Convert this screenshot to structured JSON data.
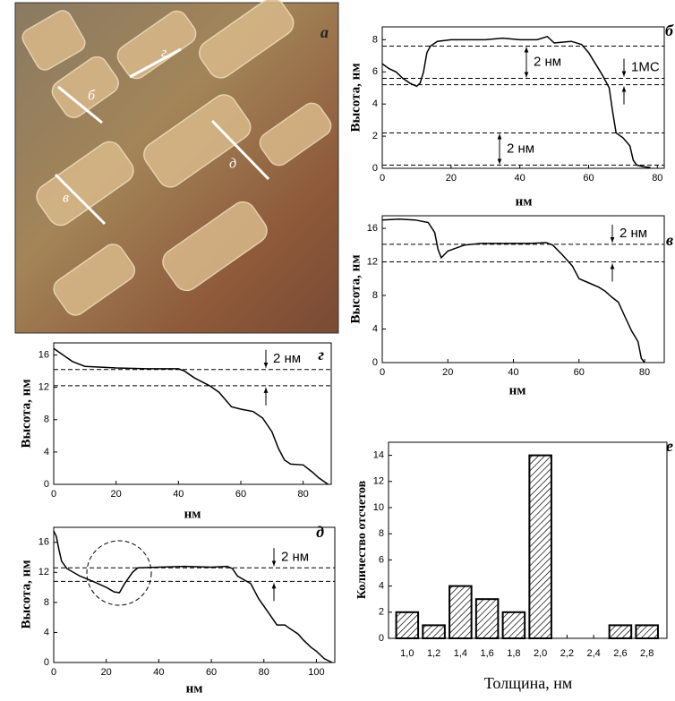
{
  "image": {
    "panel_label": "а",
    "line_labels": [
      "б",
      "в",
      "г",
      "д"
    ]
  },
  "chart_data": [
    {
      "type": "line",
      "panel_label": "б",
      "xlabel": "нм",
      "ylabel": "Высота, нм",
      "color": "#000000",
      "x": [
        0,
        2,
        4,
        6,
        8,
        10,
        11,
        12,
        13,
        14,
        16,
        20,
        25,
        30,
        35,
        40,
        45,
        48,
        50,
        55,
        58,
        60,
        62,
        64,
        66,
        67,
        68,
        70,
        72,
        73,
        74,
        76,
        78
      ],
      "values": [
        6.5,
        6.2,
        6.0,
        5.6,
        5.3,
        5.1,
        5.3,
        6.0,
        7.2,
        7.6,
        7.9,
        8.0,
        8.0,
        8.0,
        8.1,
        8.0,
        8.0,
        8.2,
        7.8,
        7.9,
        7.7,
        7.2,
        6.5,
        5.8,
        5.0,
        3.5,
        2.2,
        1.9,
        1.4,
        0.5,
        0.2,
        0.1,
        0.05
      ],
      "xlim": [
        0,
        82
      ],
      "xticks": [
        0,
        20,
        40,
        60,
        80
      ],
      "ylim": [
        0,
        8.8
      ],
      "yticks": [
        0,
        2,
        4,
        6,
        8
      ],
      "hlines": [
        7.6,
        5.6,
        5.2,
        2.2,
        0.2
      ],
      "annotations": [
        "2 нм",
        "1МС",
        "2 нм"
      ]
    },
    {
      "type": "line",
      "panel_label": "в",
      "xlabel": "нм",
      "ylabel": "Высота, нм",
      "color": "#000000",
      "x": [
        0,
        5,
        10,
        14,
        16,
        17,
        18,
        20,
        25,
        30,
        40,
        45,
        50,
        52,
        55,
        58,
        60,
        63,
        66,
        68,
        70,
        72,
        74,
        76,
        78,
        79,
        80
      ],
      "values": [
        17,
        17.1,
        17,
        16.7,
        15.5,
        13.5,
        12.5,
        13.3,
        14.0,
        14.2,
        14.2,
        14.2,
        14.3,
        14.0,
        12.8,
        11.5,
        10,
        9.5,
        9,
        8.5,
        7.8,
        7.2,
        5.5,
        3.8,
        2.5,
        0.5,
        0
      ],
      "xlim": [
        0,
        86
      ],
      "xticks": [
        0,
        20,
        40,
        60,
        80
      ],
      "ylim": [
        0,
        17.5
      ],
      "yticks": [
        0,
        4,
        8,
        12,
        16
      ],
      "hlines": [
        14.1,
        12.0
      ],
      "annotations": [
        "2 нм"
      ]
    },
    {
      "type": "line",
      "panel_label": "г",
      "xlabel": "нм",
      "ylabel": "Высота, нм",
      "color": "#000000",
      "x": [
        0,
        3,
        6,
        10,
        20,
        30,
        40,
        42,
        45,
        50,
        53,
        55,
        57,
        60,
        64,
        67,
        70,
        72,
        74,
        76,
        80,
        83,
        85,
        88
      ],
      "values": [
        16.8,
        16,
        15.2,
        14.6,
        14.4,
        14.3,
        14.3,
        14.0,
        13.2,
        12.2,
        11.4,
        10.5,
        9.6,
        9.3,
        9.0,
        8.2,
        6.5,
        4.5,
        3,
        2.5,
        2.4,
        1.5,
        0.8,
        0
      ],
      "xlim": [
        0,
        89
      ],
      "xticks": [
        0,
        20,
        40,
        60,
        80
      ],
      "ylim": [
        0,
        17.5
      ],
      "yticks": [
        0,
        4,
        8,
        12,
        16
      ],
      "hlines": [
        14.2,
        12.2
      ],
      "annotations": [
        "2 нм"
      ]
    },
    {
      "type": "line",
      "panel_label": "д",
      "xlabel": "нм",
      "ylabel": "Высота, нм",
      "color": "#000000",
      "x": [
        0,
        1,
        2,
        3,
        5,
        10,
        15,
        20,
        23,
        25,
        27,
        30,
        32,
        40,
        50,
        60,
        66,
        68,
        70,
        75,
        78,
        80,
        83,
        85,
        88,
        90,
        93,
        95,
        98,
        100,
        103,
        106
      ],
      "values": [
        17.5,
        16.8,
        15,
        13.5,
        12.5,
        11.5,
        10.8,
        10,
        9.4,
        9.3,
        10.5,
        12.0,
        12.6,
        12.7,
        12.8,
        12.7,
        12.8,
        12.5,
        11.5,
        10.5,
        8.5,
        7.5,
        6,
        5,
        5,
        4.5,
        3.8,
        3,
        2,
        1.5,
        0.5,
        0
      ],
      "xlim": [
        0,
        107
      ],
      "xticks": [
        0,
        20,
        40,
        60,
        80,
        100
      ],
      "ylim": [
        0,
        18
      ],
      "yticks": [
        0,
        4,
        8,
        12,
        16
      ],
      "hlines": [
        12.6,
        10.8
      ],
      "annotations": [
        "2 нм"
      ]
    },
    {
      "type": "bar",
      "panel_label": "е",
      "xlabel": "Толщина, нм",
      "ylabel": "Количество отсчетов",
      "color": "#000000",
      "x": [
        1.0,
        1.2,
        1.4,
        1.6,
        1.8,
        2.0,
        2.6,
        2.8
      ],
      "values": [
        2,
        1,
        4,
        3,
        2,
        14,
        1,
        1
      ],
      "xlim": [
        0.86,
        2.95
      ],
      "xticks": [
        {
          "value": 1.0,
          "label": "1,0"
        },
        {
          "value": 1.2,
          "label": "1,2"
        },
        {
          "value": 1.4,
          "label": "1,4"
        },
        {
          "value": 1.6,
          "label": "1,6"
        },
        {
          "value": 1.8,
          "label": "1,8"
        },
        {
          "value": 2.0,
          "label": "2,0"
        },
        {
          "value": 2.2,
          "label": "2,2"
        },
        {
          "value": 2.4,
          "label": "2,4"
        },
        {
          "value": 2.6,
          "label": "2,6"
        },
        {
          "value": 2.8,
          "label": "2,8"
        }
      ],
      "ylim": [
        0,
        15
      ],
      "yticks": [
        0,
        2,
        4,
        6,
        8,
        10,
        12,
        14
      ]
    }
  ]
}
